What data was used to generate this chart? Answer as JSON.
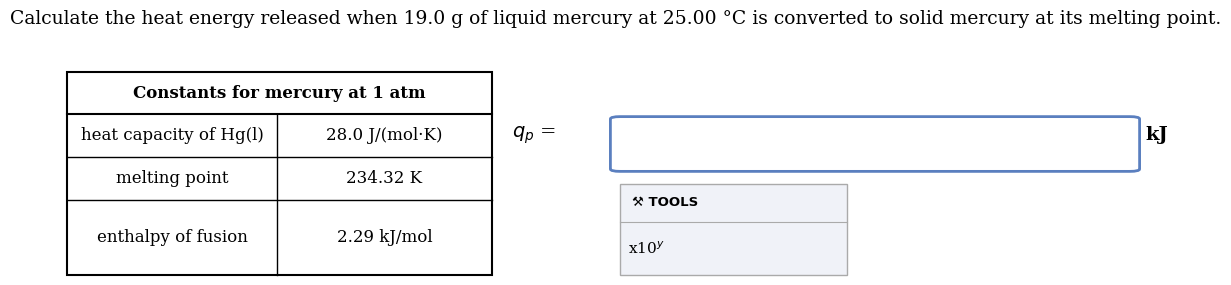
{
  "title": "Calculate the heat energy released when 19.0 g of liquid mercury at 25.00 °C is converted to solid mercury at its melting point.",
  "table_header": "Constants for mercury at 1 atm",
  "table_rows": [
    [
      "heat capacity of Hg(l)",
      "28.0 J/(mol·K)"
    ],
    [
      "melting point",
      "234.32 K"
    ],
    [
      "enthalpy of fusion",
      "2.29 kJ/mol"
    ]
  ],
  "unit_label": "kJ",
  "background_color": "#ffffff",
  "table_border_color": "#000000",
  "input_box_fill": "#ffffff",
  "input_box_border": "#5a7fbf",
  "tools_box_fill": "#f0f2f8",
  "tools_box_border": "#aaaaaa",
  "title_fontsize": 13.5,
  "table_header_fontsize": 12,
  "table_cell_fontsize": 12,
  "qp_fontsize": 14,
  "kj_fontsize": 14
}
